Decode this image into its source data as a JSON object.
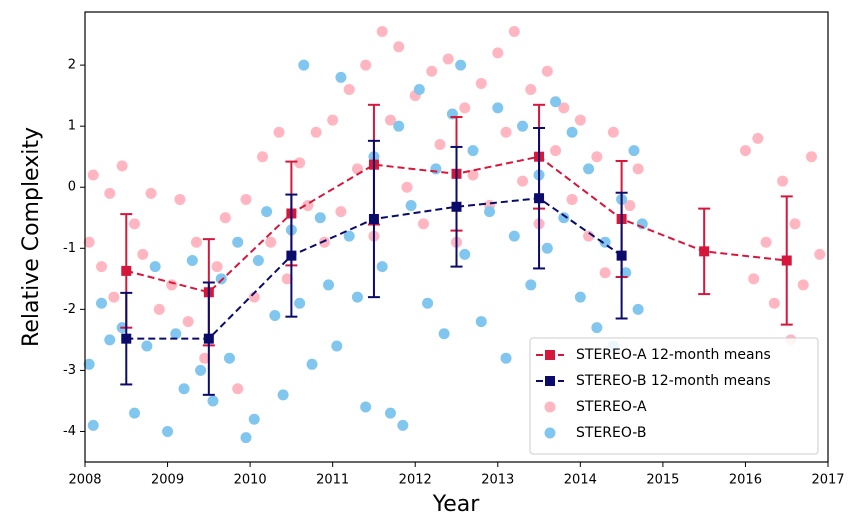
{
  "chart_data": {
    "type": "scatter",
    "x_label": "Year",
    "y_label": "Relative Complexity",
    "xlim": [
      2008,
      2017
    ],
    "ylim": [
      -4.5,
      2.87
    ],
    "xticks": [
      2008,
      2009,
      2010,
      2011,
      2012,
      2013,
      2014,
      2015,
      2016,
      2017
    ],
    "yticks": [
      -4,
      -3,
      -2,
      -1,
      0,
      1,
      2
    ],
    "legend": "lower right",
    "series": [
      {
        "name": "STEREO-A 12-month means",
        "type": "errorbar",
        "color": "#d6173c",
        "x": [
          2008.5,
          2009.5,
          2010.5,
          2011.5,
          2012.5,
          2013.5,
          2014.5,
          2015.5,
          2016.5
        ],
        "values": [
          -1.37,
          -1.72,
          -0.43,
          0.37,
          0.22,
          0.5,
          -0.52,
          -1.05,
          -1.2
        ],
        "errors": [
          0.93,
          0.87,
          0.85,
          0.98,
          0.93,
          0.85,
          0.95,
          0.7,
          1.05
        ]
      },
      {
        "name": "STEREO-B 12-month means",
        "type": "errorbar",
        "color": "#0b0b6b",
        "x": [
          2008.5,
          2009.5,
          2010.5,
          2011.5,
          2012.5,
          2013.5,
          2014.5
        ],
        "values": [
          -2.48,
          -2.48,
          -1.12,
          -0.52,
          -0.32,
          -0.18,
          -1.12
        ],
        "errors": [
          0.75,
          0.92,
          1.0,
          1.28,
          0.98,
          1.15,
          1.03
        ]
      },
      {
        "name": "STEREO-A",
        "type": "scatter",
        "color": "#ffb6c1",
        "x": [
          2008.05,
          2008.1,
          2008.2,
          2008.3,
          2008.35,
          2008.45,
          2008.6,
          2008.7,
          2008.8,
          2008.9,
          2009.05,
          2009.15,
          2009.25,
          2009.35,
          2009.45,
          2009.6,
          2009.7,
          2009.85,
          2009.95,
          2010.05,
          2010.15,
          2010.25,
          2010.35,
          2010.45,
          2010.6,
          2010.7,
          2010.8,
          2010.9,
          2011.0,
          2011.1,
          2011.2,
          2011.3,
          2011.4,
          2011.5,
          2011.6,
          2011.7,
          2011.8,
          2011.9,
          2012.0,
          2012.1,
          2012.2,
          2012.3,
          2012.4,
          2012.5,
          2012.6,
          2012.7,
          2012.8,
          2012.9,
          2013.0,
          2013.1,
          2013.2,
          2013.3,
          2013.4,
          2013.5,
          2013.6,
          2013.7,
          2013.8,
          2013.9,
          2014.0,
          2014.1,
          2014.2,
          2014.3,
          2014.4,
          2014.6,
          2014.7,
          2016.0,
          2016.1,
          2016.15,
          2016.25,
          2016.35,
          2016.45,
          2016.55,
          2016.6,
          2016.7,
          2016.8,
          2016.9
        ],
        "values": [
          -0.9,
          0.2,
          -1.3,
          -0.1,
          -1.8,
          0.35,
          -0.6,
          -1.1,
          -0.1,
          -2.0,
          -1.6,
          -0.2,
          -2.2,
          -0.9,
          -2.8,
          -1.3,
          -0.5,
          -3.3,
          -0.2,
          -1.8,
          0.5,
          -0.9,
          0.9,
          -1.5,
          0.4,
          -0.3,
          0.9,
          -0.9,
          1.1,
          -0.4,
          1.6,
          0.3,
          2.0,
          -0.8,
          2.55,
          1.1,
          2.3,
          0.0,
          1.5,
          -0.6,
          1.9,
          0.7,
          2.1,
          -0.9,
          1.3,
          0.2,
          1.7,
          -0.3,
          2.2,
          0.9,
          2.55,
          0.1,
          1.6,
          -0.6,
          1.9,
          0.6,
          1.3,
          -0.2,
          1.1,
          -0.8,
          0.5,
          -1.4,
          0.9,
          -0.3,
          0.3,
          0.6,
          -1.5,
          0.8,
          -0.9,
          -1.9,
          0.1,
          -2.5,
          -0.6,
          -1.6,
          0.5,
          -1.1
        ]
      },
      {
        "name": "STEREO-B",
        "type": "scatter",
        "color": "#80c6ef",
        "x": [
          2008.05,
          2008.1,
          2008.2,
          2008.3,
          2008.45,
          2008.6,
          2008.75,
          2008.85,
          2009.0,
          2009.1,
          2009.2,
          2009.3,
          2009.4,
          2009.55,
          2009.65,
          2009.75,
          2009.85,
          2009.95,
          2010.05,
          2010.1,
          2010.2,
          2010.3,
          2010.4,
          2010.5,
          2010.6,
          2010.65,
          2010.75,
          2010.85,
          2010.95,
          2011.05,
          2011.1,
          2011.2,
          2011.3,
          2011.4,
          2011.5,
          2011.6,
          2011.7,
          2011.8,
          2011.85,
          2011.95,
          2012.05,
          2012.15,
          2012.25,
          2012.35,
          2012.45,
          2012.55,
          2012.6,
          2012.7,
          2012.8,
          2012.9,
          2013.0,
          2013.1,
          2013.2,
          2013.3,
          2013.4,
          2013.5,
          2013.6,
          2013.7,
          2013.8,
          2013.9,
          2014.0,
          2014.1,
          2014.2,
          2014.3,
          2014.4,
          2014.5,
          2014.55,
          2014.65,
          2014.7,
          2014.75
        ],
        "values": [
          -2.9,
          -3.9,
          -1.9,
          -2.5,
          -2.3,
          -3.7,
          -2.6,
          -1.3,
          -4.0,
          -2.4,
          -3.3,
          -1.2,
          -3.0,
          -3.5,
          -1.5,
          -2.8,
          -0.9,
          -4.1,
          -3.8,
          -1.2,
          -0.4,
          -2.1,
          -3.4,
          -0.7,
          -1.9,
          2.0,
          -2.9,
          -0.5,
          -1.6,
          -2.6,
          1.8,
          -0.8,
          -1.8,
          -3.6,
          0.5,
          -1.3,
          -3.7,
          1.0,
          -3.9,
          -0.3,
          1.6,
          -1.9,
          0.3,
          -2.4,
          1.2,
          2.0,
          -1.1,
          0.6,
          -2.2,
          -0.4,
          1.3,
          -2.8,
          -0.8,
          1.0,
          -1.6,
          0.2,
          -1.0,
          1.4,
          -0.5,
          0.9,
          -1.8,
          0.3,
          -2.3,
          -0.9,
          -2.6,
          -0.2,
          -1.4,
          0.6,
          -2.0,
          -0.6
        ]
      }
    ]
  }
}
